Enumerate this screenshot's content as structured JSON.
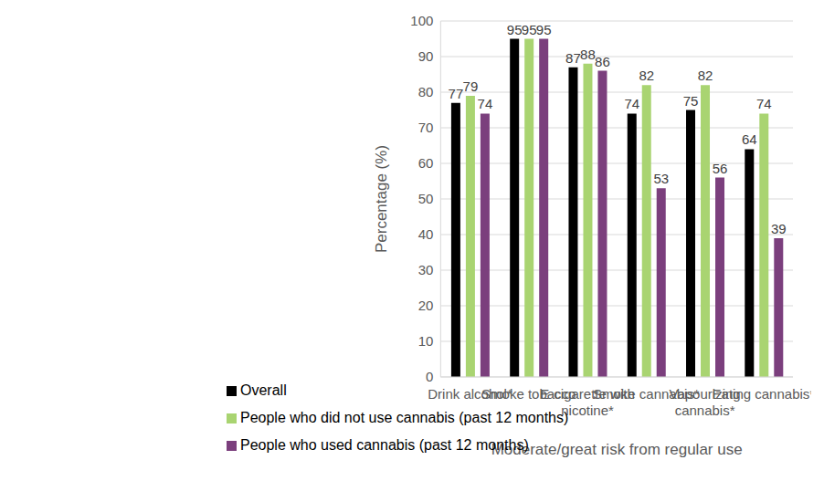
{
  "chart_data": {
    "type": "bar",
    "x_label": "Moderate/great risk from regular use",
    "y_label": "Percentage (%)",
    "categories": [
      "Drink alcohol*",
      "Smoke tobacco",
      "E-cigarette with nicotine*",
      "Smoke cannabis*",
      "Vapourizing cannabis*",
      "Eating cannabis*"
    ],
    "series": [
      {
        "name": "Overall",
        "color": "#000000",
        "values": [
          77,
          95,
          87,
          74,
          75,
          64
        ]
      },
      {
        "name": "People who did not use cannabis (past 12 months)",
        "color": "#a9d471",
        "values": [
          79,
          95,
          88,
          82,
          82,
          74
        ]
      },
      {
        "name": "People who used cannabis (past 12 months)",
        "color": "#7b3f7d",
        "values": [
          74,
          95,
          86,
          53,
          56,
          39
        ]
      }
    ],
    "ylim": [
      0,
      100
    ],
    "yticks": [
      0,
      10,
      20,
      30,
      40,
      50,
      60,
      70,
      80,
      90,
      100
    ],
    "grid": true,
    "legend": "bottom",
    "data_labels": true
  }
}
